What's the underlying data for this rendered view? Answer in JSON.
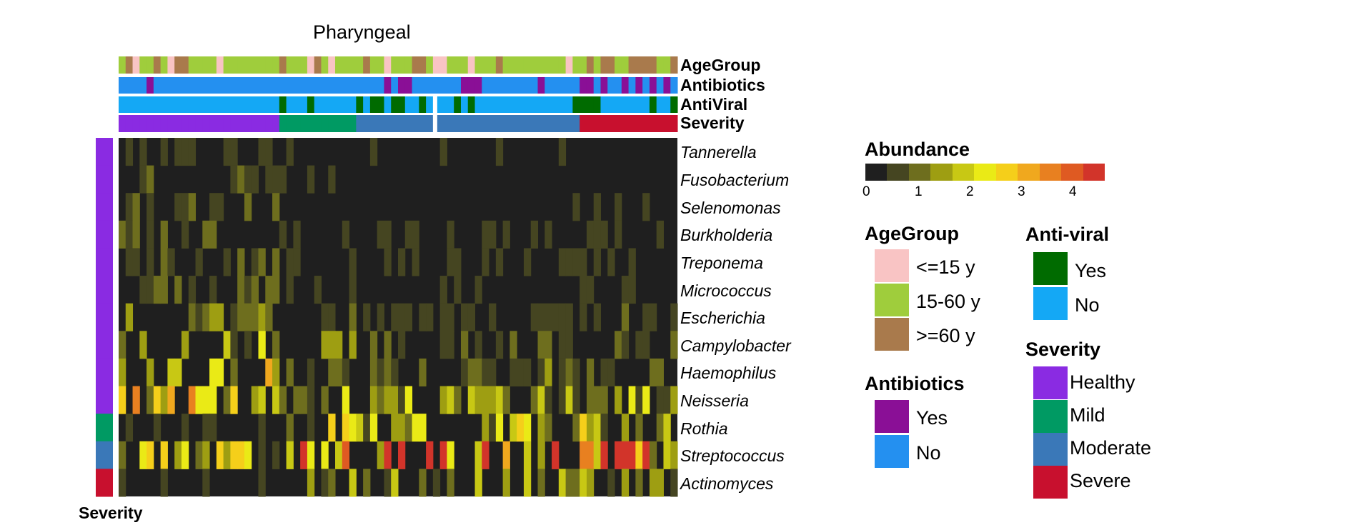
{
  "chart_data": {
    "type": "heatmap",
    "title": "Pharyngeal",
    "rows": [
      "Tannerella",
      "Fusobacterium",
      "Selenomonas",
      "Burkholderia",
      "Treponema",
      "Micrococcus",
      "Escherichia",
      "Campylobacter",
      "Haemophilus",
      "Neisseria",
      "Rothia",
      "Streptococcus",
      "Actinomyces"
    ],
    "n_samples": 80,
    "column_annotations": [
      "AgeGroup",
      "Antibiotics",
      "AntiViral",
      "Severity"
    ],
    "row_annotation_label": "Severity",
    "row_annotation_colors": [
      "#8a2be2",
      "#8a2be2",
      "#8a2be2",
      "#8a2be2",
      "#8a2be2",
      "#8a2be2",
      "#8a2be2",
      "#8a2be2",
      "#8a2be2",
      "#8a2be2",
      "#009a63",
      "#3a78b8",
      "#c8102e"
    ],
    "severity_groups": [
      {
        "label": "Healthy",
        "count": 23
      },
      {
        "label": "Mild",
        "count": 11
      },
      {
        "label": "Moderate",
        "count": 32
      },
      {
        "label": "Severe",
        "count": 14
      }
    ],
    "row_profiles": {
      "Tannerella": {
        "healthy": 0.35,
        "mild": 0.15,
        "moderate": 0.2,
        "severe": 0.1
      },
      "Fusobacterium": {
        "healthy": 0.45,
        "mild": 0.25,
        "moderate": 0.15,
        "severe": 0.1
      },
      "Selenomonas": {
        "healthy": 0.4,
        "mild": 0.1,
        "moderate": 0.15,
        "severe": 0.15
      },
      "Burkholderia": {
        "healthy": 0.6,
        "mild": 0.3,
        "moderate": 0.25,
        "severe": 0.3
      },
      "Treponema": {
        "healthy": 0.55,
        "mild": 0.25,
        "moderate": 0.25,
        "severe": 0.2
      },
      "Micrococcus": {
        "healthy": 0.5,
        "mild": 0.2,
        "moderate": 0.15,
        "severe": 0.3
      },
      "Escherichia": {
        "healthy": 0.8,
        "mild": 0.4,
        "moderate": 0.35,
        "severe": 0.4
      },
      "Campylobacter": {
        "healthy": 1.3,
        "mild": 0.8,
        "moderate": 0.6,
        "severe": 0.6
      },
      "Haemophilus": {
        "healthy": 1.7,
        "mild": 0.8,
        "moderate": 0.6,
        "severe": 0.7
      },
      "Neisseria": {
        "healthy": 2.2,
        "mild": 1.2,
        "moderate": 1.1,
        "severe": 1.1
      },
      "Rothia": {
        "healthy": 0.2,
        "mild": 1.5,
        "moderate": 1.3,
        "severe": 1.3
      },
      "Streptococcus": {
        "healthy": 1.6,
        "mild": 3.2,
        "moderate": 3.0,
        "severe": 3.1
      },
      "Actinomyces": {
        "healthy": 0.2,
        "mild": 1.2,
        "moderate": 1.1,
        "severe": 1.0
      }
    },
    "color_scale": {
      "label": "Abundance",
      "ticks": [
        "0",
        "1",
        "2",
        "3",
        "4"
      ],
      "colors": [
        "#1f1f1f",
        "#454521",
        "#6e6e1e",
        "#9e9e12",
        "#c8c814",
        "#eaea16",
        "#f5cf1a",
        "#f0a81e",
        "#e88020",
        "#df5a22",
        "#d2342a"
      ]
    }
  },
  "legends": {
    "abundance_title": "Abundance",
    "agegroup": {
      "title": "AgeGroup",
      "items": [
        {
          "label": "<=15 y",
          "color": "#f9c4c4"
        },
        {
          "label": "15-60 y",
          "color": "#9fcd3c"
        },
        {
          "label": ">=60 y",
          "color": "#a97a4c"
        }
      ]
    },
    "antibiotics": {
      "title": "Antibiotics",
      "items": [
        {
          "label": "Yes",
          "color": "#8a0f96"
        },
        {
          "label": "No",
          "color": "#2490f0"
        }
      ]
    },
    "antiviral": {
      "title": "Anti-viral",
      "items": [
        {
          "label": "Yes",
          "color": "#006b00"
        },
        {
          "label": "No",
          "color": "#14a8f5"
        }
      ]
    },
    "severity": {
      "title": "Severity",
      "items": [
        {
          "label": "Healthy",
          "color": "#8a2be2"
        },
        {
          "label": "Mild",
          "color": "#009a63"
        },
        {
          "label": "Moderate",
          "color": "#3a78b8"
        },
        {
          "label": "Severe",
          "color": "#c8102e"
        }
      ]
    }
  },
  "annotation_labels": {
    "agegroup": "AgeGroup",
    "antibiotics": "Antibiotics",
    "antiviral": "AntiViral",
    "severity": "Severity"
  }
}
